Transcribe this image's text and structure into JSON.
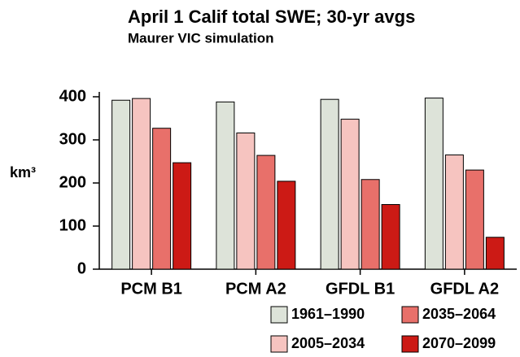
{
  "chart_data": {
    "type": "bar",
    "title": "April 1 Calif total SWE; 30-yr avgs",
    "subtitle": "Maurer VIC simulation",
    "y_label": "km³",
    "categories": [
      "PCM B1",
      "PCM A2",
      "GFDL B1",
      "GFDL A2"
    ],
    "series": [
      {
        "name": "1961–1990",
        "color": "#dde3d9",
        "values": [
          392,
          388,
          394,
          397
        ]
      },
      {
        "name": "2005–2034",
        "color": "#f6c4c0",
        "values": [
          396,
          316,
          348,
          265
        ]
      },
      {
        "name": "2035–2064",
        "color": "#e8706a",
        "values": [
          327,
          264,
          208,
          230
        ]
      },
      {
        "name": "2070–2099",
        "color": "#cc1a15",
        "values": [
          247,
          204,
          150,
          74
        ]
      }
    ],
    "ylim": [
      0,
      400
    ],
    "yticks": [
      0,
      100,
      200,
      300,
      400
    ],
    "legend": "bottom-right"
  }
}
